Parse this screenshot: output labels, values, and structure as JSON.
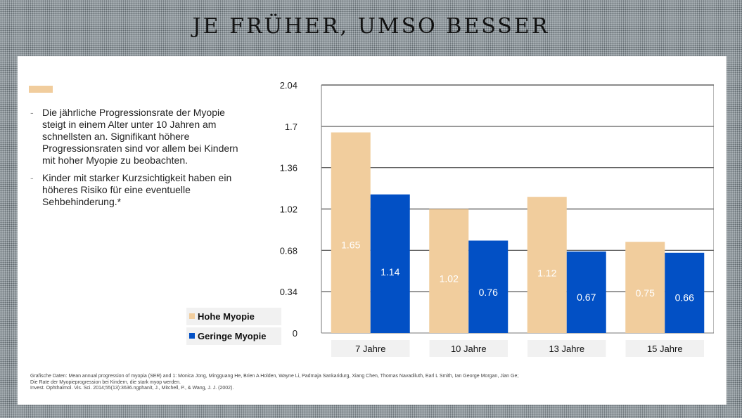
{
  "page": {
    "title": "JE FRÜHER, UMSO BESSER"
  },
  "bullets": [
    "Die jährliche Progressionsrate der Myopie steigt in einem Alter unter 10 Jahren am schnellsten an. Signifikant höhere Progressionsraten sind vor allem bei Kindern mit hoher Myopie zu beobachten.",
    "Kinder mit starker Kurzsichtigkeit haben ein höheres Risiko für eine eventuelle Sehbehinderung.*"
  ],
  "legend": {
    "high": "Hohe Myopie",
    "low": "Geringe Myopie"
  },
  "source": {
    "line1": "Grafische Daten: Mean annual progression of myopia (SER) and 1: Monica Jong, Mingguang He, Brien A Holden, Wayne Li, Padmaja Sankaridurg, Xiang Chen, Thomas Navadiluth, Earl L Smith, Ian George Morgan, Jian Ge;",
    "line2": "Die Rate der Myopieprogression bei Kindern, die stark myop werden.",
    "line3": "Invest. Ophthalmol. Vis. Sci. 2014;55(13):3636.ngphanit, J., Mitchell, P., & Wang, J. J. (2002)."
  },
  "colors": {
    "high": "#f1cd9d",
    "low": "#0250c5",
    "axis": "#777777",
    "grid": "#444444"
  },
  "chart_data": {
    "type": "bar",
    "categories": [
      "7 Jahre",
      "10 Jahre",
      "13 Jahre",
      "15 Jahre"
    ],
    "series": [
      {
        "name": "Hohe Myopie",
        "values": [
          1.65,
          1.02,
          1.12,
          0.75
        ],
        "labels": [
          "1.65",
          "1.02",
          "1.12",
          "0.75"
        ]
      },
      {
        "name": "Geringe Myopie",
        "values": [
          1.14,
          0.76,
          0.67,
          0.66
        ],
        "labels": [
          "1.14",
          "0.76",
          "0.67",
          "0.66"
        ]
      }
    ],
    "yticks": [
      0,
      0.34,
      0.68,
      1.02,
      1.36,
      1.7,
      2.04
    ],
    "ytick_labels": [
      "0",
      "0.34",
      "0.68",
      "1.02",
      "1.36",
      "1.7",
      "2.04"
    ],
    "ylim": [
      0,
      2.04
    ],
    "grid": true,
    "legend_position": "bottom-left"
  }
}
